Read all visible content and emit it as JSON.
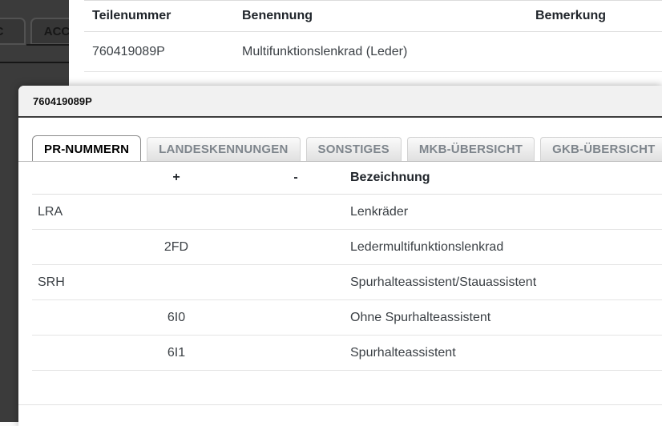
{
  "background": {
    "tabs": [
      {
        "label": "C"
      },
      {
        "label": "ACC"
      }
    ]
  },
  "top_table": {
    "columns": [
      "Teilenummer",
      "Benennung",
      "Bemerkung"
    ],
    "rows": [
      {
        "teilenummer": "760419089P",
        "benennung": "Multifunktionslenkrad (Leder)",
        "bemerkung": ""
      }
    ]
  },
  "dialog": {
    "title": "760419089P",
    "tabs": [
      {
        "label": "PR-NUMMERN",
        "active": true
      },
      {
        "label": "LANDESKENNUNGEN",
        "active": false
      },
      {
        "label": "SONSTIGES",
        "active": false
      },
      {
        "label": "MKB-ÜBERSICHT",
        "active": false
      },
      {
        "label": "GKB-ÜBERSICHT",
        "active": false
      }
    ],
    "table": {
      "columns": [
        "",
        "+",
        "-",
        "Bezeichnung"
      ],
      "rows": [
        {
          "family": "LRA",
          "plus": "",
          "minus": "",
          "bezeichnung": "Lenkräder"
        },
        {
          "family": "",
          "plus": "2FD",
          "minus": "",
          "bezeichnung": "Ledermultifunktionslenkrad"
        },
        {
          "family": "SRH",
          "plus": "",
          "minus": "",
          "bezeichnung": "Spurhalteassistent/Stauassistent"
        },
        {
          "family": "",
          "plus": "6I0",
          "minus": "",
          "bezeichnung": "Ohne Spurhalteassistent"
        },
        {
          "family": "",
          "plus": "6I1",
          "minus": "",
          "bezeichnung": "Spurhalteassistent"
        }
      ]
    }
  },
  "colors": {
    "dimmed_background": "#3b3b3b",
    "panel_background": "#ffffff",
    "dialog_header_background": "#f1f1f1",
    "dialog_header_border": "#3e3e3e",
    "tab_inactive_text": "#7e858c",
    "tab_active_text": "#000000",
    "row_separator": "#e4e4e4",
    "heading_text": "#1f242a",
    "body_text": "#3b4045"
  }
}
